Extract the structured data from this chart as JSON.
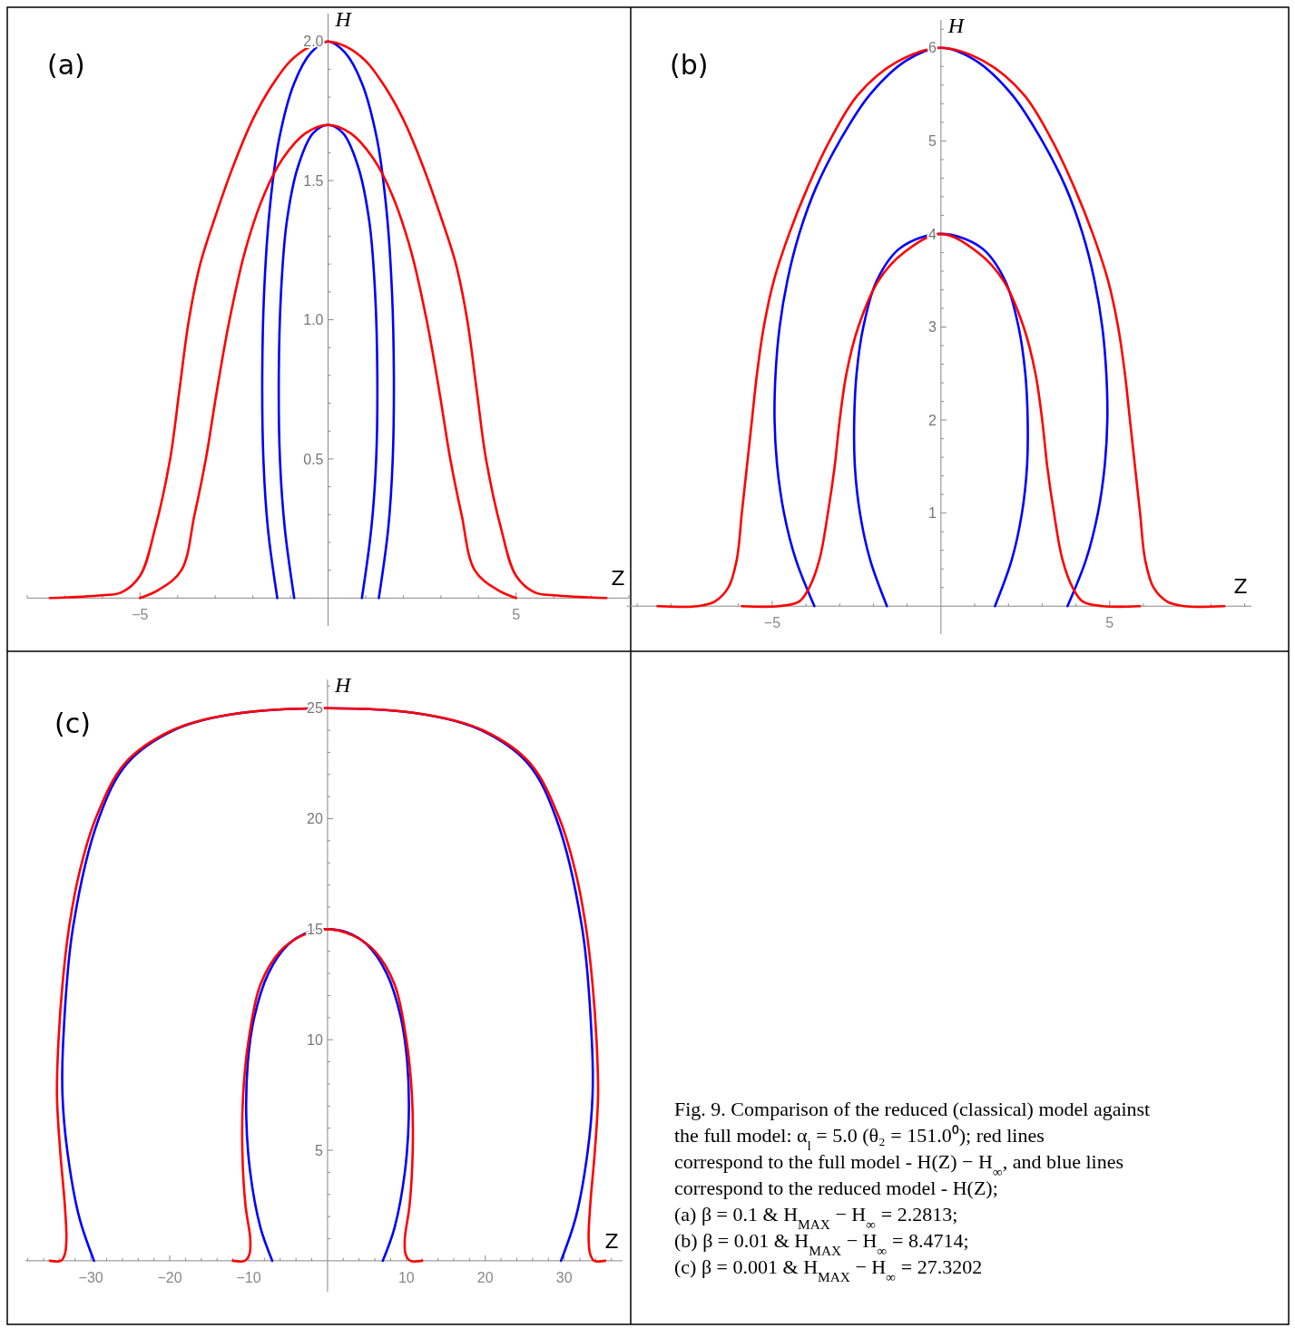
{
  "chart_data": [
    {
      "type": "line",
      "title": "(a)",
      "xlabel": "Z",
      "ylabel": "H",
      "xlim": [
        -8,
        8
      ],
      "ylim": [
        -0.1,
        2.1
      ],
      "xticks": [
        {
          "value": -8,
          "label": null
        },
        {
          "value": -7,
          "label": null
        },
        {
          "value": -6,
          "label": null
        },
        {
          "value": -5,
          "label": "−5"
        },
        {
          "value": -4,
          "label": null
        },
        {
          "value": -3,
          "label": null
        },
        {
          "value": -2,
          "label": null
        },
        {
          "value": -1,
          "label": null
        },
        {
          "value": 1,
          "label": null
        },
        {
          "value": 2,
          "label": null
        },
        {
          "value": 3,
          "label": null
        },
        {
          "value": 4,
          "label": null
        },
        5,
        {
          "value": 6,
          "label": null
        },
        {
          "value": 7,
          "label": null
        },
        {
          "value": 8,
          "label": null
        }
      ],
      "yticks": [
        {
          "value": 0.1,
          "label": null
        },
        {
          "value": 0.2,
          "label": null
        },
        {
          "value": 0.3,
          "label": null
        },
        {
          "value": 0.4,
          "label": null
        },
        0.5,
        {
          "value": 0.6,
          "label": null
        },
        {
          "value": 0.7,
          "label": null
        },
        {
          "value": 0.8,
          "label": null
        },
        {
          "value": 0.9,
          "label": null
        },
        {
          "value": 1,
          "label": "1.0"
        },
        {
          "value": 1.1,
          "label": null
        },
        {
          "value": 1.2,
          "label": null
        },
        {
          "value": 1.3,
          "label": null
        },
        {
          "value": 1.4,
          "label": null
        },
        1.5,
        {
          "value": 1.6,
          "label": null
        },
        {
          "value": 1.7,
          "label": null
        },
        {
          "value": 1.8,
          "label": null
        },
        {
          "value": 1.9,
          "label": null
        },
        {
          "value": 2,
          "label": "2.0"
        }
      ],
      "series": [
        {
          "color": "#0000ff",
          "x": [
            -1.35,
            -1.6,
            -1.72,
            -1.75,
            -1.7,
            -1.55,
            -1.3,
            -0.9,
            -0.45,
            0,
            0.45,
            0.9,
            1.3,
            1.55,
            1.7,
            1.75,
            1.72,
            1.6,
            1.35
          ],
          "values": [
            0,
            0.25,
            0.5,
            0.8,
            1.1,
            1.4,
            1.65,
            1.85,
            1.96,
            2,
            1.96,
            1.85,
            1.65,
            1.4,
            1.1,
            0.8,
            0.5,
            0.25,
            0
          ]
        },
        {
          "color": "#0000ff",
          "x": [
            -0.9,
            -1.15,
            -1.28,
            -1.31,
            -1.25,
            -1.1,
            -0.8,
            -0.4,
            0,
            0.4,
            0.8,
            1.1,
            1.25,
            1.31,
            1.28,
            1.15,
            0.9
          ],
          "values": [
            0,
            0.25,
            0.5,
            0.8,
            1.1,
            1.35,
            1.55,
            1.67,
            1.7,
            1.67,
            1.55,
            1.35,
            1.1,
            0.8,
            0.5,
            0.25,
            0
          ]
        },
        {
          "color": "#ff0000",
          "x": [
            -7.4,
            -6,
            -5.5,
            -5,
            -4.6,
            -4.2,
            -3.95,
            -3.7,
            -3.4,
            -3,
            -2.5,
            -2,
            -1.5,
            -1,
            -0.5,
            0,
            0.5,
            1,
            1.5,
            2,
            2.5,
            3,
            3.4,
            3.7,
            3.95,
            4.2,
            4.6,
            5,
            5.5,
            6,
            7.4
          ],
          "values": [
            0,
            0.01,
            0.02,
            0.08,
            0.25,
            0.5,
            0.75,
            1,
            1.2,
            1.37,
            1.56,
            1.72,
            1.84,
            1.93,
            1.98,
            2,
            1.98,
            1.93,
            1.84,
            1.72,
            1.56,
            1.37,
            1.2,
            1,
            0.75,
            0.5,
            0.25,
            0.08,
            0.02,
            0.01,
            0
          ]
        },
        {
          "color": "#ff0000",
          "x": [
            -5,
            -4.5,
            -3.9,
            -3.55,
            -3.25,
            -2.95,
            -2.62,
            -2.2,
            -1.7,
            -1.2,
            -0.6,
            0,
            0.6,
            1.2,
            1.7,
            2.2,
            2.62,
            2.95,
            3.25,
            3.55,
            3.9,
            4.5,
            5
          ],
          "values": [
            0,
            0.03,
            0.1,
            0.3,
            0.5,
            0.75,
            1,
            1.25,
            1.45,
            1.58,
            1.67,
            1.7,
            1.67,
            1.58,
            1.45,
            1.25,
            1,
            0.75,
            0.5,
            0.3,
            0.1,
            0.03,
            0
          ]
        }
      ]
    },
    {
      "type": "line",
      "title": "(b)",
      "xlabel": "Z",
      "ylabel": "H",
      "xlim": [
        -9.3,
        9.2
      ],
      "ylim": [
        -0.3,
        6.3
      ],
      "xticks": [
        {
          "value": -9,
          "label": null
        },
        {
          "value": -8,
          "label": null
        },
        {
          "value": -7,
          "label": null
        },
        {
          "value": -6,
          "label": null
        },
        {
          "value": -5,
          "label": "−5"
        },
        {
          "value": -4,
          "label": null
        },
        {
          "value": -3,
          "label": null
        },
        {
          "value": -2,
          "label": null
        },
        {
          "value": -1,
          "label": null
        },
        {
          "value": 1,
          "label": null
        },
        {
          "value": 2,
          "label": null
        },
        {
          "value": 3,
          "label": null
        },
        {
          "value": 4,
          "label": null
        },
        5,
        {
          "value": 6,
          "label": null
        },
        {
          "value": 7,
          "label": null
        },
        {
          "value": 8,
          "label": null
        },
        {
          "value": 9,
          "label": null
        }
      ],
      "yticks": [
        {
          "value": 0.2,
          "label": null
        },
        {
          "value": 0.4,
          "label": null
        },
        {
          "value": 0.6,
          "label": null
        },
        {
          "value": 0.8,
          "label": null
        },
        1,
        {
          "value": 1.2,
          "label": null
        },
        {
          "value": 1.4,
          "label": null
        },
        {
          "value": 1.6,
          "label": null
        },
        {
          "value": 1.8,
          "label": null
        },
        2,
        {
          "value": 2.2,
          "label": null
        },
        {
          "value": 2.4,
          "label": null
        },
        {
          "value": 2.6,
          "label": null
        },
        {
          "value": 2.8,
          "label": null
        },
        3,
        {
          "value": 3.2,
          "label": null
        },
        {
          "value": 3.4,
          "label": null
        },
        {
          "value": 3.6,
          "label": null
        },
        {
          "value": 3.8,
          "label": null
        },
        4,
        {
          "value": 4.2,
          "label": null
        },
        {
          "value": 4.4,
          "label": null
        },
        {
          "value": 4.6,
          "label": null
        },
        {
          "value": 4.8,
          "label": null
        },
        5,
        {
          "value": 5.2,
          "label": null
        },
        {
          "value": 5.4,
          "label": null
        },
        {
          "value": 5.6,
          "label": null
        },
        {
          "value": 5.8,
          "label": null
        },
        6,
        {
          "value": 6.2,
          "label": null
        }
      ],
      "series": [
        {
          "color": "#0000ff",
          "x": [
            -3.75,
            -4.3,
            -4.65,
            -4.85,
            -4.93,
            -4.9,
            -4.78,
            -4.55,
            -4.2,
            -3.7,
            -3,
            -2.1,
            -1,
            0,
            1,
            2.1,
            3,
            3.7,
            4.2,
            4.55,
            4.78,
            4.9,
            4.93,
            4.85,
            4.65,
            4.3,
            3.75
          ],
          "values": [
            0,
            0.5,
            1,
            1.5,
            2,
            2.5,
            3,
            3.5,
            4,
            4.5,
            5,
            5.5,
            5.87,
            6,
            5.87,
            5.5,
            5,
            4.5,
            4,
            3.5,
            3,
            2.5,
            2,
            1.5,
            1,
            0.5,
            0
          ]
        },
        {
          "color": "#0000ff",
          "x": [
            -1.6,
            -2.1,
            -2.4,
            -2.55,
            -2.57,
            -2.5,
            -2.3,
            -1.9,
            -1.2,
            0,
            1.2,
            1.9,
            2.3,
            2.5,
            2.57,
            2.55,
            2.4,
            2.1,
            1.6
          ],
          "values": [
            0,
            0.5,
            1,
            1.5,
            2,
            2.5,
            3,
            3.5,
            3.85,
            4,
            3.85,
            3.5,
            3,
            2.5,
            2,
            1.5,
            1,
            0.5,
            0
          ]
        },
        {
          "color": "#ff0000",
          "x": [
            -8.4,
            -7.2,
            -6.7,
            -6.3,
            -6.05,
            -5.9,
            -5.75,
            -5.6,
            -5.45,
            -5.25,
            -4.95,
            -4.5,
            -3.95,
            -3.3,
            -2.45,
            -1.3,
            0,
            1.3,
            2.45,
            3.3,
            3.95,
            4.5,
            4.95,
            5.25,
            5.45,
            5.6,
            5.75,
            5.9,
            6.05,
            6.3,
            6.7,
            7.2,
            8.4
          ],
          "values": [
            0,
            0,
            0.05,
            0.2,
            0.5,
            1,
            1.5,
            2,
            2.5,
            3,
            3.5,
            4,
            4.5,
            5,
            5.5,
            5.85,
            6,
            5.85,
            5.5,
            5,
            4.5,
            4,
            3.5,
            3,
            2.5,
            2,
            1.5,
            1,
            0.5,
            0.2,
            0.05,
            0,
            0
          ]
        },
        {
          "color": "#ff0000",
          "x": [
            -5.9,
            -4.8,
            -4.2,
            -3.9,
            -3.6,
            -3.35,
            -3.15,
            -3,
            -2.8,
            -2.45,
            -1.85,
            -1.1,
            0,
            1.1,
            1.85,
            2.45,
            2.8,
            3,
            3.15,
            3.35,
            3.6,
            3.9,
            4.2,
            4.8,
            5.9
          ],
          "values": [
            0,
            0,
            0.05,
            0.2,
            0.5,
            1,
            1.5,
            2,
            2.5,
            3,
            3.5,
            3.8,
            4,
            3.8,
            3.5,
            3,
            2.5,
            2,
            1.5,
            1,
            0.5,
            0.2,
            0.05,
            0,
            0
          ]
        }
      ]
    },
    {
      "type": "line",
      "title": "(c)",
      "xlabel": "Z",
      "ylabel": "H",
      "xlim": [
        -38.3,
        37.4
      ],
      "ylim": [
        -1.4,
        26.3
      ],
      "xticks": [
        {
          "value": -38,
          "label": null
        },
        {
          "value": -36,
          "label": null
        },
        {
          "value": -34,
          "label": null
        },
        {
          "value": -32,
          "label": null
        },
        {
          "value": -30,
          "label": "−30"
        },
        {
          "value": -28,
          "label": null
        },
        {
          "value": -26,
          "label": null
        },
        {
          "value": -24,
          "label": null
        },
        {
          "value": -22,
          "label": null
        },
        {
          "value": -20,
          "label": "−20"
        },
        {
          "value": -18,
          "label": null
        },
        {
          "value": -16,
          "label": null
        },
        {
          "value": -14,
          "label": null
        },
        {
          "value": -12,
          "label": null
        },
        {
          "value": -10,
          "label": "−10"
        },
        {
          "value": -8,
          "label": null
        },
        {
          "value": -6,
          "label": null
        },
        {
          "value": -4,
          "label": null
        },
        {
          "value": -2,
          "label": null
        },
        {
          "value": 2,
          "label": null
        },
        {
          "value": 4,
          "label": null
        },
        {
          "value": 6,
          "label": null
        },
        {
          "value": 8,
          "label": null
        },
        10,
        {
          "value": 12,
          "label": null
        },
        {
          "value": 14,
          "label": null
        },
        {
          "value": 16,
          "label": null
        },
        {
          "value": 18,
          "label": null
        },
        20,
        {
          "value": 22,
          "label": null
        },
        {
          "value": 24,
          "label": null
        },
        {
          "value": 26,
          "label": null
        },
        {
          "value": 28,
          "label": null
        },
        30,
        {
          "value": 32,
          "label": null
        },
        {
          "value": 34,
          "label": null
        },
        {
          "value": 36,
          "label": null
        }
      ],
      "yticks": [
        {
          "value": 1,
          "label": null
        },
        {
          "value": 2,
          "label": null
        },
        {
          "value": 3,
          "label": null
        },
        {
          "value": 4,
          "label": null
        },
        5,
        {
          "value": 6,
          "label": null
        },
        {
          "value": 7,
          "label": null
        },
        {
          "value": 8,
          "label": null
        },
        {
          "value": 9,
          "label": null
        },
        10,
        {
          "value": 11,
          "label": null
        },
        {
          "value": 12,
          "label": null
        },
        {
          "value": 13,
          "label": null
        },
        {
          "value": 14,
          "label": null
        },
        15,
        {
          "value": 16,
          "label": null
        },
        {
          "value": 17,
          "label": null
        },
        {
          "value": 18,
          "label": null
        },
        {
          "value": 19,
          "label": null
        },
        20,
        {
          "value": 21,
          "label": null
        },
        {
          "value": 22,
          "label": null
        },
        {
          "value": 23,
          "label": null
        },
        {
          "value": 24,
          "label": null
        },
        25,
        {
          "value": 26,
          "label": null
        }
      ],
      "series": [
        {
          "color": "#0000ff",
          "x": [
            -29.6,
            -31.5,
            -33,
            -33.6,
            -33.5,
            -32.3,
            -29,
            -25.4,
            -19.5,
            -12.5,
            0,
            12.5,
            19.5,
            25.4,
            29,
            32.3,
            33.5,
            33.6,
            33,
            31.5,
            29.6
          ],
          "values": [
            0,
            2,
            5,
            7.5,
            10,
            15,
            20,
            22.5,
            24,
            24.7,
            25,
            24.7,
            24,
            22.5,
            20,
            15,
            10,
            7.5,
            5,
            2,
            0
          ]
        },
        {
          "color": "#0000ff",
          "x": [
            -7,
            -8.5,
            -9.8,
            -10.3,
            -10.1,
            -9.3,
            -7.5,
            -5,
            -2.5,
            0,
            2.5,
            5,
            7.5,
            9.3,
            10.1,
            10.3,
            9.8,
            8.5,
            7
          ],
          "values": [
            0,
            1.5,
            4,
            6.5,
            9,
            11,
            13,
            14.3,
            14.85,
            15,
            14.85,
            14.3,
            13,
            11,
            9,
            6.5,
            4,
            1.5,
            0
          ]
        },
        {
          "color": "#ff0000",
          "x": [
            -35.2,
            -33.8,
            -33.3,
            -33.1,
            -33.3,
            -33.9,
            -34.3,
            -34.1,
            -33.6,
            -32.8,
            -31.5,
            -29.4,
            -25.7,
            -19.7,
            -12.6,
            0,
            12.6,
            19.7,
            25.7,
            29.4,
            31.5,
            32.8,
            33.6,
            34.1,
            34.3,
            33.9,
            33.3,
            33.1,
            33.3,
            33.8,
            35.2
          ],
          "values": [
            0,
            0,
            0.3,
            1,
            2.5,
            5,
            7.5,
            10,
            12.5,
            15,
            17.5,
            20,
            22.5,
            24,
            24.7,
            25,
            24.7,
            24,
            22.5,
            20,
            17.5,
            15,
            12.5,
            10,
            7.5,
            5,
            2.5,
            1,
            0.3,
            0,
            0
          ]
        },
        {
          "color": "#ff0000",
          "x": [
            -12,
            -10.5,
            -9.9,
            -9.8,
            -10.4,
            -10.8,
            -10.7,
            -10,
            -8.5,
            -6,
            -3.3,
            0,
            3.3,
            6,
            8.5,
            10,
            10.7,
            10.8,
            10.4,
            9.8,
            9.9,
            10.5,
            12
          ],
          "values": [
            0,
            0,
            0.3,
            1,
            2.5,
            5,
            7.5,
            10,
            12.5,
            14,
            14.7,
            15,
            14.7,
            14,
            12.5,
            10,
            7.5,
            5,
            2.5,
            1,
            0.3,
            0,
            0
          ]
        }
      ]
    },
    {
      "type": "other",
      "annotations": [
        "Fig. 9. Comparison of the reduced (classical) model against",
        "the full model: α$_{l}$ = 5.0 (θ₂ = 151.0⁰); red lines",
        "correspond to the full model - H(Z) − H$_{∞}$, and blue lines",
        "correspond to the reduced model - H(Z);",
        "(a) β = 0.1 & H$_{MAX}$ − H$_{∞}$ = 2.2813;",
        "(b) β = 0.01 & H$_{MAX}$ − H$_{∞}$ = 8.4714;",
        "(c) β = 0.001 & H$_{MAX}$ − H$_{∞}$ = 27.3202"
      ]
    }
  ]
}
